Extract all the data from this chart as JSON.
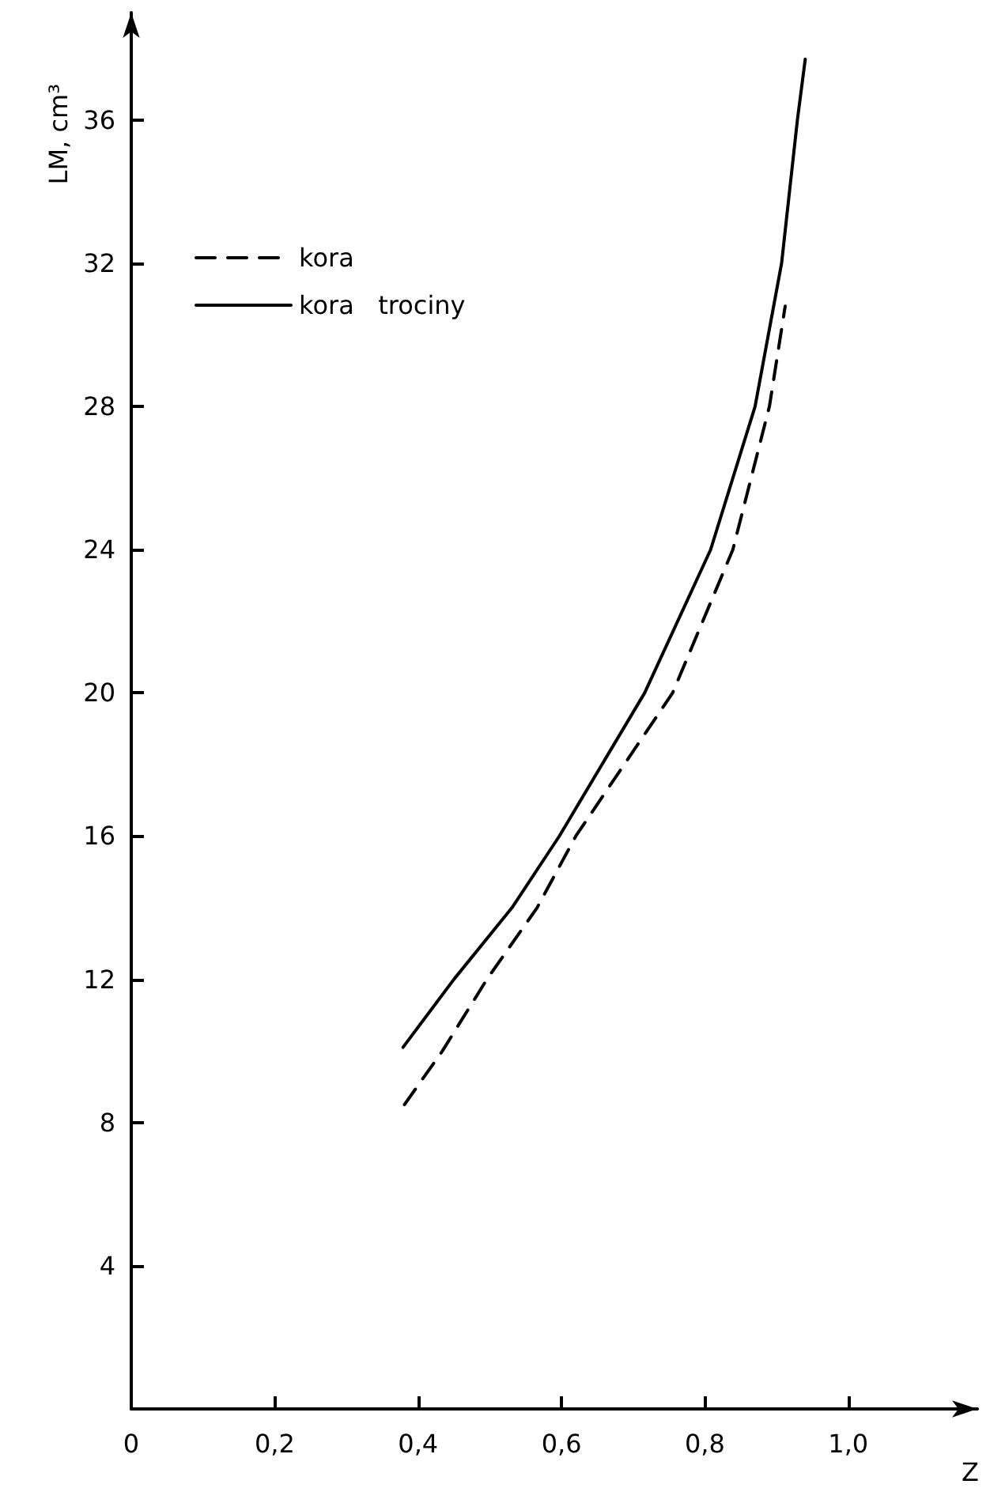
{
  "chart_data": {
    "type": "line",
    "xlabel": "Z",
    "ylabel": "LM, cm³",
    "series": [
      {
        "name": "kora",
        "color": "#000000",
        "line_style": "dashed",
        "x": [
          0.381,
          0.434,
          0.496,
          0.566,
          0.62,
          0.755,
          0.839,
          0.89,
          0.912
        ],
        "values": [
          8.5,
          10,
          12,
          14,
          16,
          20,
          24,
          28,
          30.8
        ]
      },
      {
        "name": "kora   trociny",
        "color": "#000000",
        "line_style": "solid",
        "x": [
          0.379,
          0.45,
          0.531,
          0.597,
          0.716,
          0.808,
          0.87,
          0.907,
          0.929,
          0.94
        ],
        "values": [
          10.1,
          12,
          14,
          16,
          20,
          24,
          28,
          32,
          36,
          37.7
        ]
      }
    ],
    "xlim": [
      0,
      1.18
    ],
    "xticks": [
      {
        "value": 0,
        "label": "0"
      },
      {
        "value": 0.2,
        "label": "0,2"
      },
      {
        "value": 0.4,
        "label": "0,4"
      },
      {
        "value": 0.6,
        "label": "0,6"
      },
      {
        "value": 0.8,
        "label": "0,8"
      },
      {
        "value": 1.0,
        "label": "1,0"
      }
    ],
    "ylim": [
      0,
      39
    ],
    "yticks": [
      4,
      8,
      12,
      16,
      20,
      24,
      28,
      32,
      36
    ],
    "legend": "top left",
    "grid": false,
    "marker": "none"
  }
}
